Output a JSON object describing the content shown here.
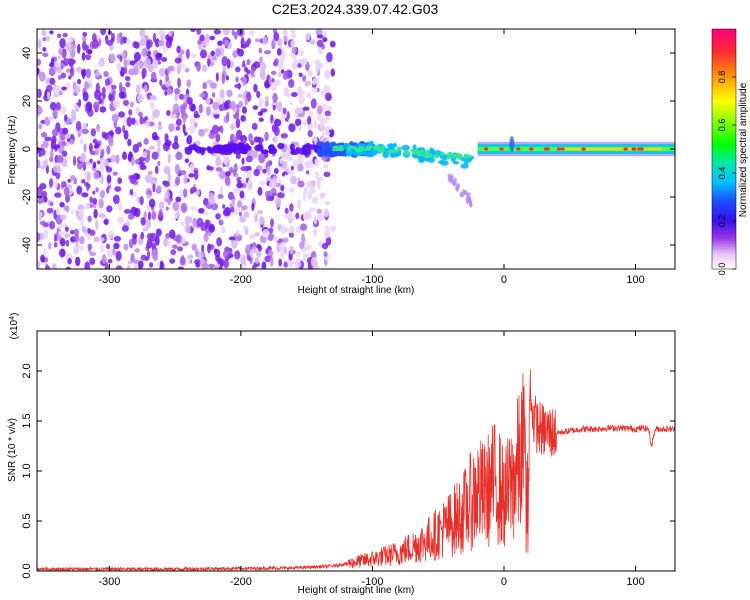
{
  "title": "C2E3.2024.339.07.42.G03",
  "chart_data": [
    {
      "type": "heatmap",
      "xlabel": "Height of straight line (km)",
      "ylabel": "Frequency (Hz)",
      "xlim": [
        -355,
        130
      ],
      "ylim": [
        -50,
        50
      ],
      "xticks": [
        -300,
        -200,
        -100,
        0,
        100
      ],
      "yticks": [
        -40,
        -20,
        0,
        20,
        40
      ],
      "colorbar": {
        "label": "Normalized spectral amplitude",
        "range": [
          0.0,
          1.0
        ],
        "ticks": [
          "0.0",
          "0.2",
          "0.4",
          "0.6",
          "0.8"
        ],
        "tick_values": [
          0.0,
          0.2,
          0.4,
          0.6,
          0.8
        ]
      },
      "features": {
        "noise_region_x": [
          -355,
          -140
        ],
        "signal_center_frequency_hz": 0,
        "signal_start_x": -240,
        "strong_signal_start_x": -20,
        "signal_end_x": 130
      }
    },
    {
      "type": "line",
      "xlabel": "Height of straight line (km)",
      "ylabel": "SNR (10 * v/v)",
      "y_multiplier": "(x10^4)",
      "xlim": [
        -355,
        130
      ],
      "ylim": [
        0.0,
        2.4
      ],
      "xticks": [
        -300,
        -200,
        -100,
        0,
        100
      ],
      "yticks": [
        0.0,
        0.5,
        1.0,
        1.5,
        2.0
      ],
      "ytick_labels": [
        "0.0",
        "0.5",
        "1.0",
        "1.5",
        "2.0"
      ],
      "color": "#e8302a",
      "series": [
        {
          "x": [
            -355,
            -250,
            -160,
            -130,
            -100,
            -80,
            -60,
            -50,
            -40,
            -30,
            -25,
            -20,
            -15,
            -10,
            -5,
            0,
            5,
            10,
            15,
            18,
            20,
            22,
            25,
            30,
            40,
            50,
            60,
            70,
            80,
            90,
            100,
            105,
            110,
            112,
            115,
            120,
            130
          ],
          "values": [
            0.02,
            0.02,
            0.03,
            0.05,
            0.12,
            0.18,
            0.3,
            0.38,
            0.48,
            0.6,
            0.7,
            0.8,
            0.75,
            0.85,
            0.9,
            0.7,
            0.85,
            1.0,
            1.2,
            0.3,
            1.4,
            1.55,
            1.45,
            1.4,
            1.38,
            1.4,
            1.42,
            1.42,
            1.43,
            1.43,
            1.42,
            1.43,
            1.42,
            1.25,
            1.42,
            1.42,
            1.42
          ]
        }
      ]
    }
  ]
}
